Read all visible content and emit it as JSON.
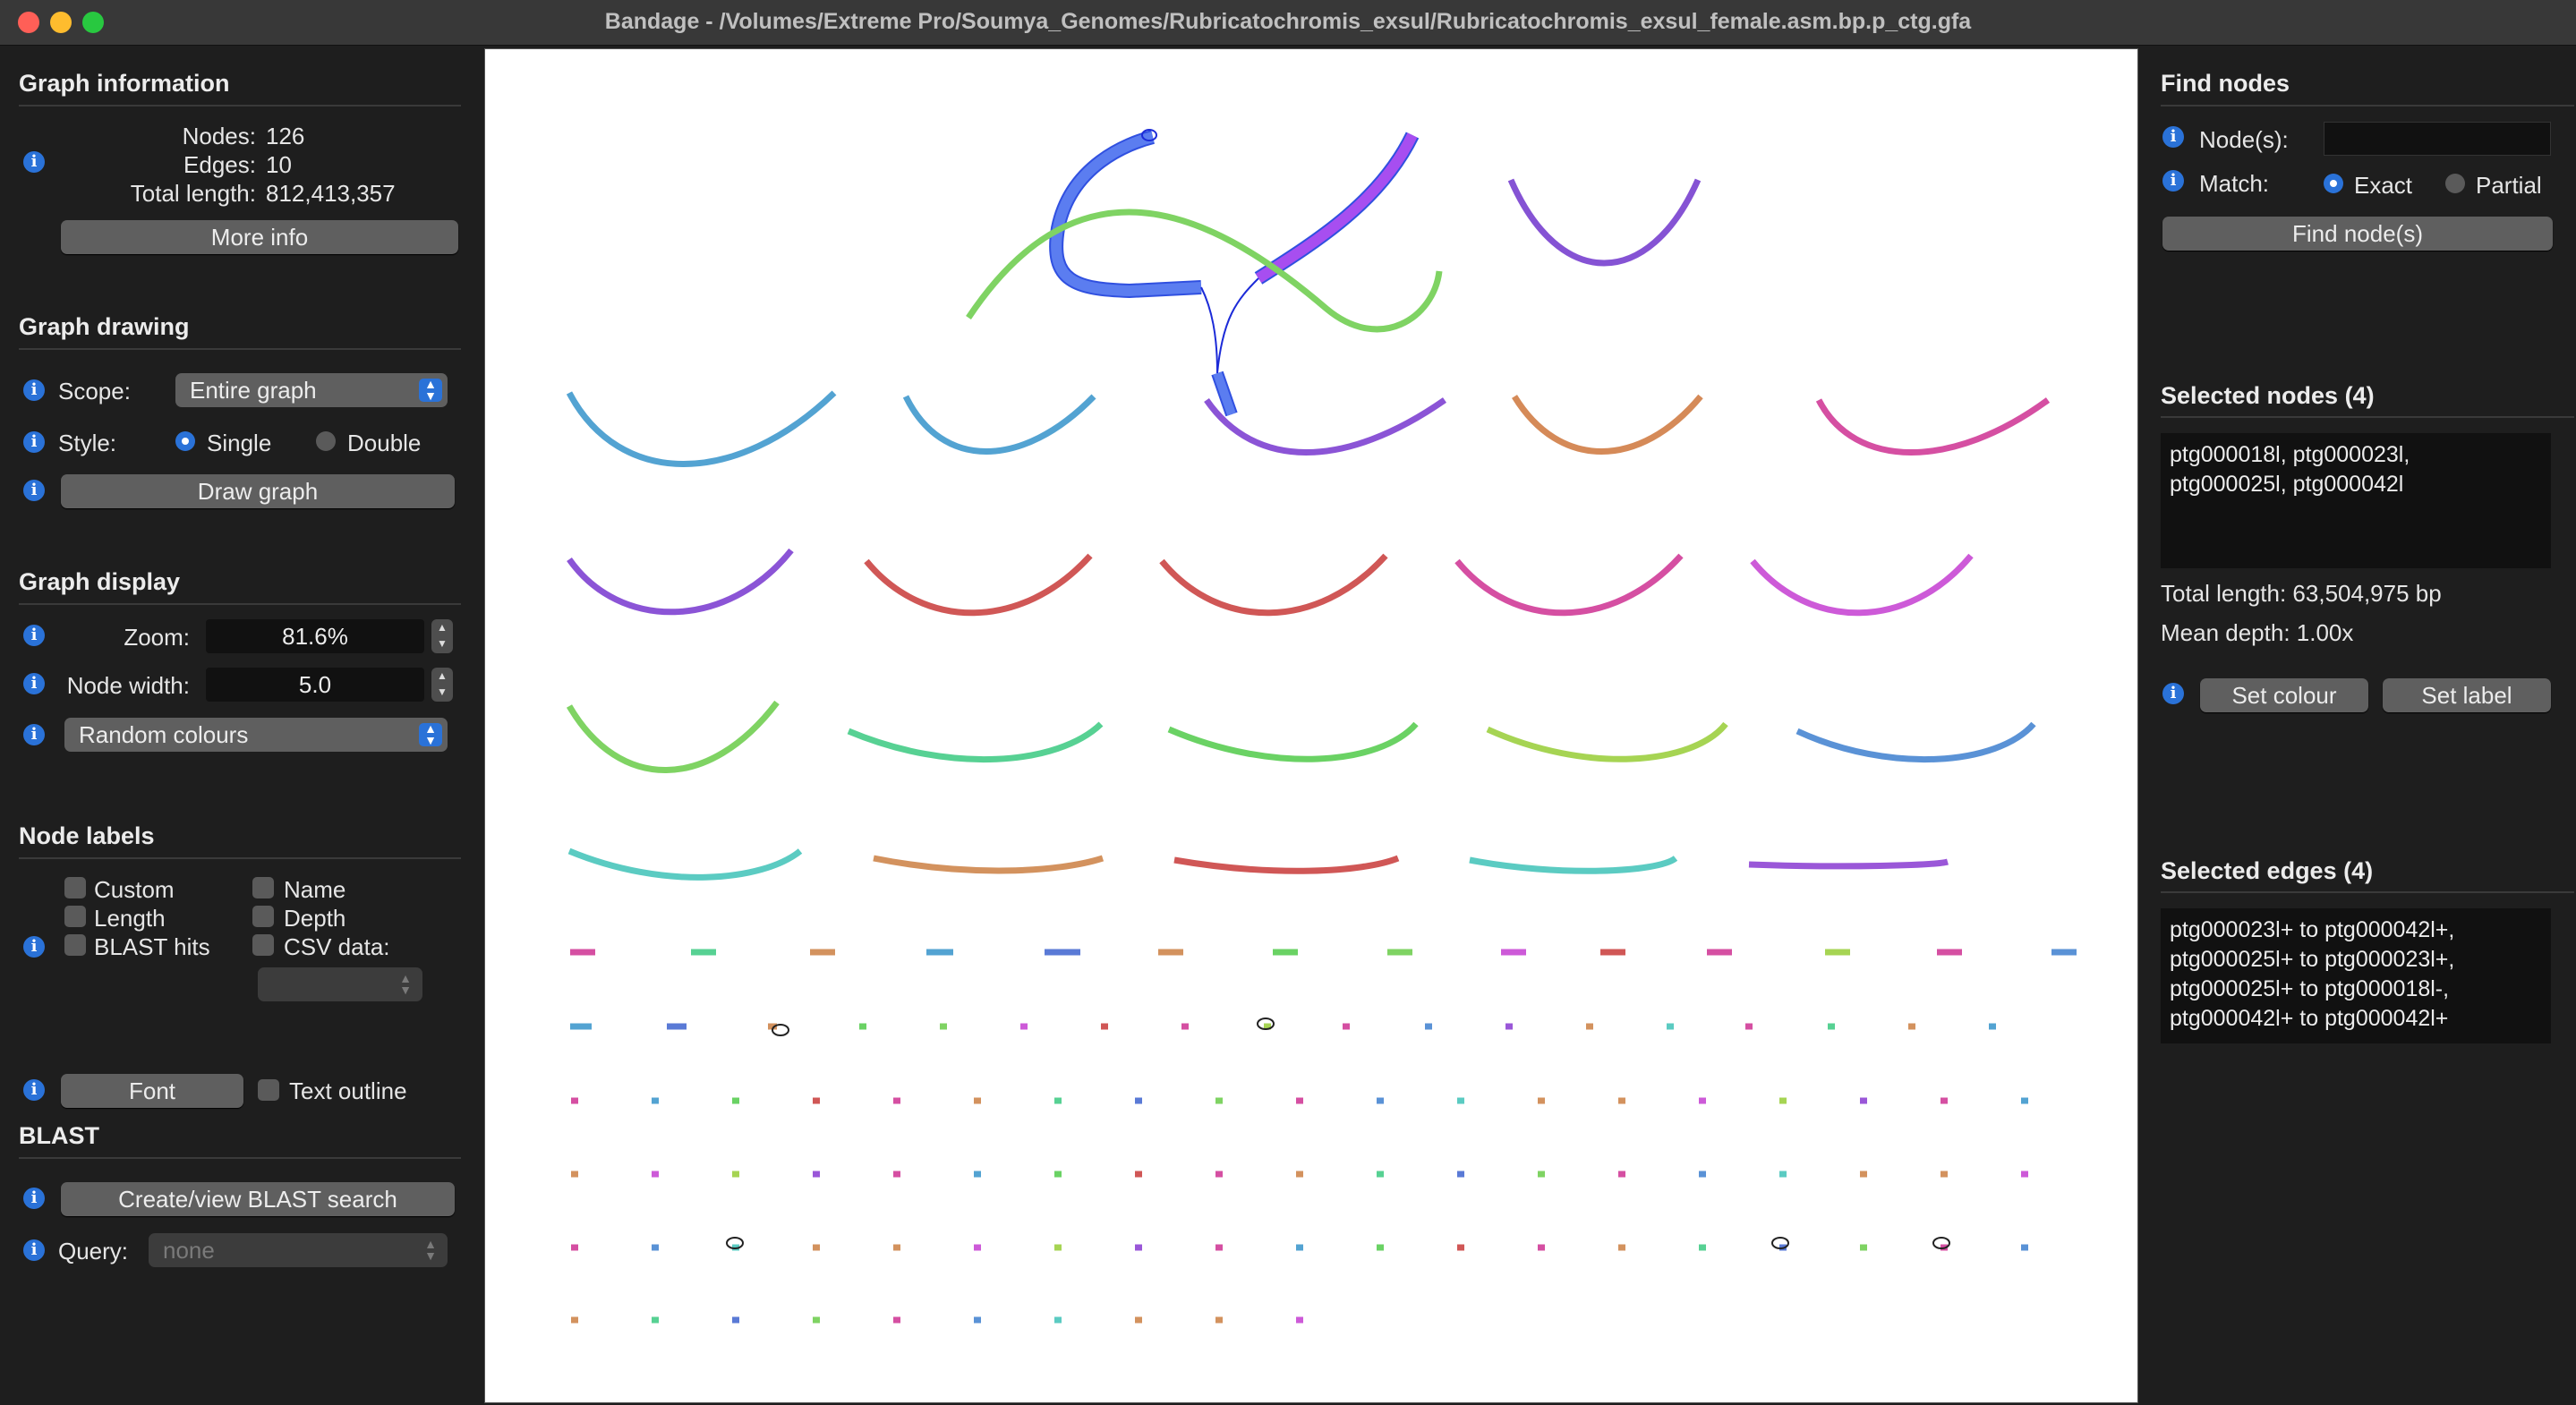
{
  "window": {
    "title": "Bandage - /Volumes/Extreme Pro/Soumya_Genomes/Rubricatochromis_exsul/Rubricatochromis_exsul_female.asm.bp.p_ctg.gfa"
  },
  "graph_information": {
    "heading": "Graph information",
    "nodes_label": "Nodes:",
    "nodes_value": "126",
    "edges_label": "Edges:",
    "edges_value": "10",
    "total_length_label": "Total length:",
    "total_length_value": "812,413,357",
    "more_info_button": "More info"
  },
  "graph_drawing": {
    "heading": "Graph drawing",
    "scope_label": "Scope:",
    "scope_value": "Entire graph",
    "style_label": "Style:",
    "style_single": "Single",
    "style_double": "Double",
    "style_selected": "Single",
    "draw_button": "Draw graph"
  },
  "graph_display": {
    "heading": "Graph display",
    "zoom_label": "Zoom:",
    "zoom_value": "81.6%",
    "node_width_label": "Node width:",
    "node_width_value": "5.0",
    "colour_scheme": "Random colours"
  },
  "node_labels": {
    "heading": "Node labels",
    "custom": "Custom",
    "length": "Length",
    "blast_hits": "BLAST hits",
    "name": "Name",
    "depth": "Depth",
    "csv_data": "CSV data:",
    "font_button": "Font",
    "text_outline": "Text outline"
  },
  "blast": {
    "heading": "BLAST",
    "create_button": "Create/view BLAST search",
    "query_label": "Query:",
    "query_value": "none"
  },
  "find_nodes": {
    "heading": "Find nodes",
    "nodes_label": "Node(s):",
    "nodes_value": "",
    "match_label": "Match:",
    "match_exact": "Exact",
    "match_partial": "Partial",
    "match_selected": "Exact",
    "find_button": "Find node(s)"
  },
  "selected_nodes": {
    "heading": "Selected nodes (4)",
    "list": "ptg000018l, ptg000023l,\nptg000025l, ptg000042l",
    "total_length": "Total length: 63,504,975 bp",
    "mean_depth": "Mean depth: 1.00x",
    "set_colour_button": "Set colour",
    "set_label_button": "Set label"
  },
  "selected_edges": {
    "heading": "Selected edges (4)",
    "list": "ptg000023l+ to ptg000042l+,\nptg000025l+ to ptg000023l+,\nptg000025l+ to ptg000018l-,\nptg000042l+ to ptg000042l+"
  },
  "icons": {
    "info": "info-icon",
    "combo": "chevron-updown-icon",
    "stepper": "stepper-icon"
  },
  "colors": {
    "accent": "#2a72d8",
    "panel": "#1e1e1e",
    "canvas": "#ffffff",
    "selection": "#3050e0"
  }
}
